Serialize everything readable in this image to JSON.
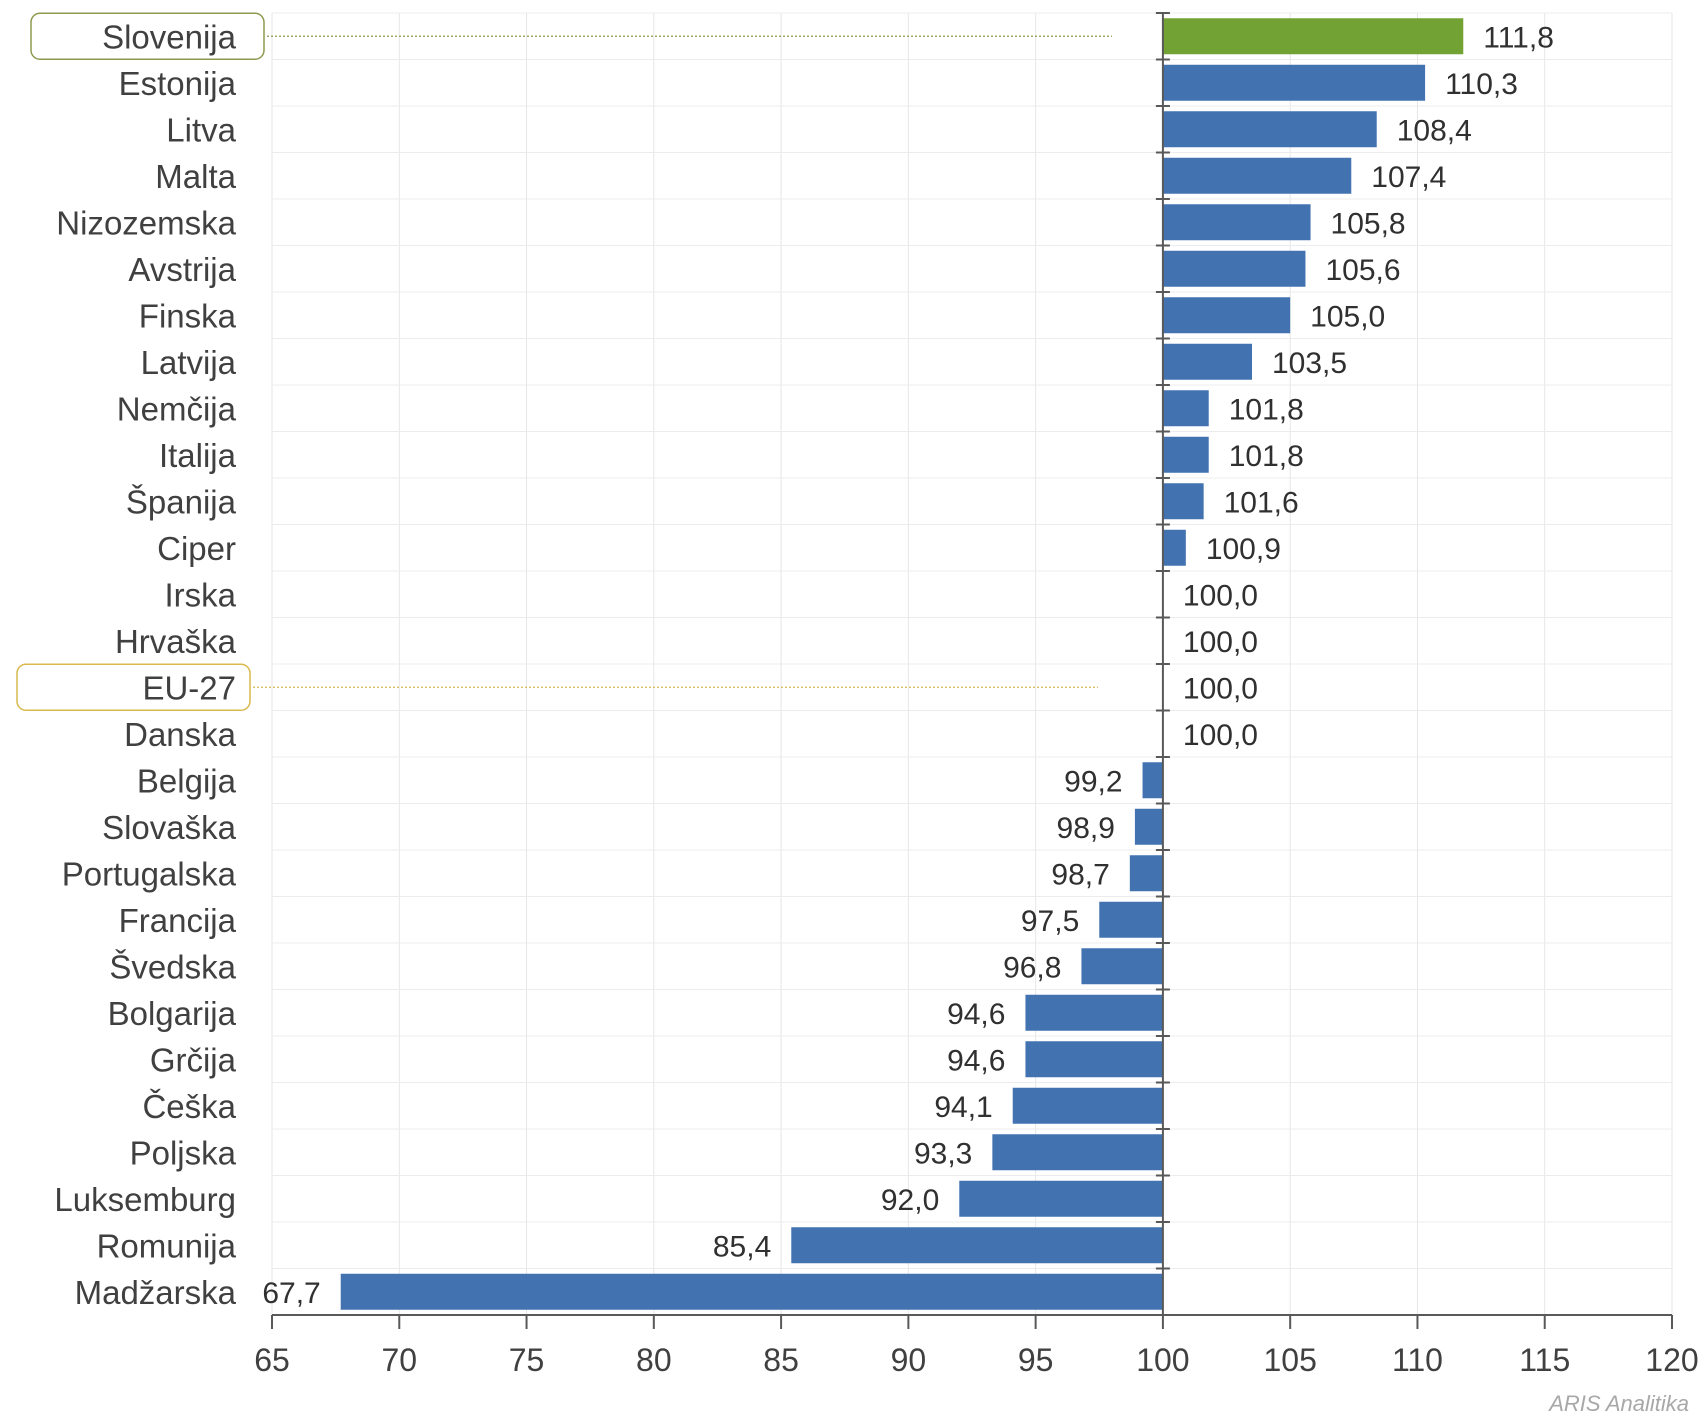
{
  "chart_data": {
    "type": "bar",
    "orientation": "horizontal",
    "baseline": 100,
    "xlim": [
      65,
      120
    ],
    "xticks": [
      65,
      70,
      75,
      80,
      85,
      90,
      95,
      100,
      105,
      110,
      115,
      120
    ],
    "grid": true,
    "categories": [
      "Slovenija",
      "Estonija",
      "Litva",
      "Malta",
      "Nizozemska",
      "Avstrija",
      "Finska",
      "Latvija",
      "Nemčija",
      "Italija",
      "Španija",
      "Ciper",
      "Irska",
      "Hrvaška",
      "EU-27",
      "Danska",
      "Belgija",
      "Slovaška",
      "Portugalska",
      "Francija",
      "Švedska",
      "Bolgarija",
      "Grčija",
      "Češka",
      "Poljska",
      "Luksemburg",
      "Romunija",
      "Madžarska"
    ],
    "values": [
      111.8,
      110.3,
      108.4,
      107.4,
      105.8,
      105.6,
      105.0,
      103.5,
      101.8,
      101.8,
      101.6,
      100.9,
      100.0,
      100.0,
      100.0,
      100.0,
      99.2,
      98.9,
      98.7,
      97.5,
      96.8,
      94.6,
      94.6,
      94.1,
      93.3,
      92.0,
      85.4,
      67.7
    ],
    "value_labels": [
      "111,8",
      "110,3",
      "108,4",
      "107,4",
      "105,8",
      "105,6",
      "105,0",
      "103,5",
      "101,8",
      "101,8",
      "101,6",
      "100,9",
      "100,0",
      "100,0",
      "100,0",
      "100,0",
      "99,2",
      "98,9",
      "98,7",
      "97,5",
      "96,8",
      "94,6",
      "94,6",
      "94,1",
      "93,3",
      "92,0",
      "85,4",
      "67,7"
    ],
    "highlighted": [
      "Slovenija",
      "EU-27"
    ],
    "colors": {
      "bar": "#4272b0",
      "highlight_bar": "#72a233",
      "slovenija_box": "#8f9a4e",
      "eu_box": "#d9b84e"
    }
  },
  "watermark": "ARIS Analitika"
}
